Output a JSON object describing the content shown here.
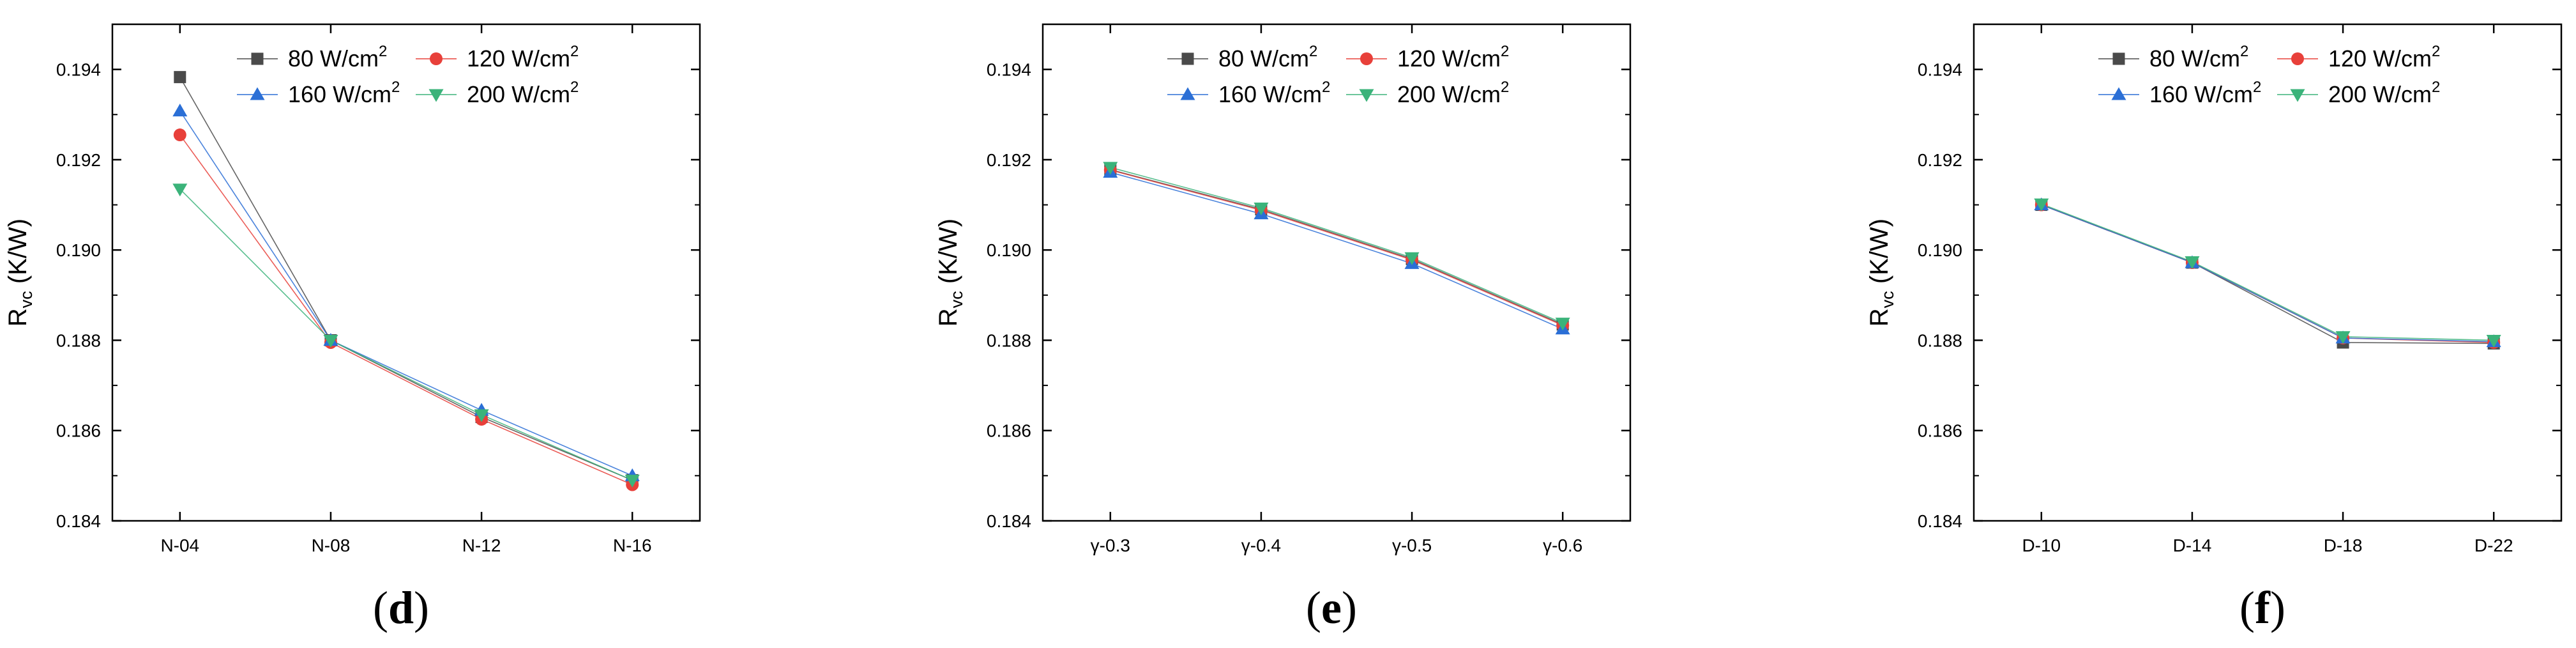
{
  "chart_data": [
    {
      "type": "line",
      "panel_label": "d",
      "categories": [
        "N-04",
        "N-08",
        "N-12",
        "N-16"
      ],
      "ylabel": "R_vc (K/W)",
      "ylabel_main": "R",
      "ylabel_sub": "vc",
      "ylabel_unit": " (K/W)",
      "ylim": [
        0.184,
        0.195
      ],
      "yticks": [
        "0.184",
        "0.186",
        "0.188",
        "0.190",
        "0.192",
        "0.194"
      ],
      "series": [
        {
          "name": "80 W/cm2",
          "name_main": "80 W/cm",
          "name_sup": "2",
          "values": [
            0.19383,
            0.188,
            0.1863,
            0.1849
          ]
        },
        {
          "name": "120 W/cm2",
          "name_main": "120 W/cm",
          "name_sup": "2",
          "values": [
            0.19255,
            0.18795,
            0.18625,
            0.1848
          ]
        },
        {
          "name": "160 W/cm2",
          "name_main": "160 W/cm",
          "name_sup": "2",
          "values": [
            0.19308,
            0.188,
            0.18645,
            0.185
          ]
        },
        {
          "name": "200 W/cm2",
          "name_main": "200 W/cm",
          "name_sup": "2",
          "values": [
            0.19135,
            0.188,
            0.18635,
            0.1849
          ]
        }
      ]
    },
    {
      "type": "line",
      "panel_label": "e",
      "categories": [
        "γ-0.3",
        "γ-0.4",
        "γ-0.5",
        "γ-0.6"
      ],
      "ylabel": "R_vc (K/W)",
      "ylabel_main": "R",
      "ylabel_sub": "vc",
      "ylabel_unit": " (K/W)",
      "ylim": [
        0.184,
        0.195
      ],
      "yticks": [
        "0.184",
        "0.186",
        "0.188",
        "0.190",
        "0.192",
        "0.194"
      ],
      "series": [
        {
          "name": "80 W/cm2",
          "name_main": "80 W/cm",
          "name_sup": "2",
          "values": [
            0.19178,
            0.1909,
            0.1898,
            0.18835
          ]
        },
        {
          "name": "120 W/cm2",
          "name_main": "120 W/cm",
          "name_sup": "2",
          "values": [
            0.19177,
            0.19088,
            0.18978,
            0.18833
          ]
        },
        {
          "name": "160 W/cm2",
          "name_main": "160 W/cm",
          "name_sup": "2",
          "values": [
            0.19172,
            0.1908,
            0.1897,
            0.18825
          ]
        },
        {
          "name": "200 W/cm2",
          "name_main": "200 W/cm",
          "name_sup": "2",
          "values": [
            0.19183,
            0.19093,
            0.18983,
            0.18838
          ]
        }
      ]
    },
    {
      "type": "line",
      "panel_label": "f",
      "categories": [
        "D-10",
        "D-14",
        "D-18",
        "D-22"
      ],
      "ylabel": "R_vc (K/W)",
      "ylabel_main": "R",
      "ylabel_sub": "vc",
      "ylabel_unit": " (K/W)",
      "ylim": [
        0.184,
        0.195
      ],
      "yticks": [
        "0.184",
        "0.186",
        "0.188",
        "0.190",
        "0.192",
        "0.194"
      ],
      "series": [
        {
          "name": "80 W/cm2",
          "name_main": "80 W/cm",
          "name_sup": "2",
          "values": [
            0.191,
            0.18972,
            0.18795,
            0.18793
          ]
        },
        {
          "name": "120 W/cm2",
          "name_main": "120 W/cm",
          "name_sup": "2",
          "values": [
            0.191,
            0.18972,
            0.18805,
            0.18795
          ]
        },
        {
          "name": "160 W/cm2",
          "name_main": "160 W/cm",
          "name_sup": "2",
          "values": [
            0.191,
            0.18972,
            0.18805,
            0.18797
          ]
        },
        {
          "name": "200 W/cm2",
          "name_main": "200 W/cm",
          "name_sup": "2",
          "values": [
            0.19102,
            0.18974,
            0.18808,
            0.188
          ]
        }
      ]
    }
  ],
  "series_colors": [
    "#4a4a4a",
    "#e8403a",
    "#2b6fd6",
    "#3bb37a"
  ],
  "series_markers": [
    "square",
    "circle",
    "triangle-up",
    "triangle-down"
  ]
}
